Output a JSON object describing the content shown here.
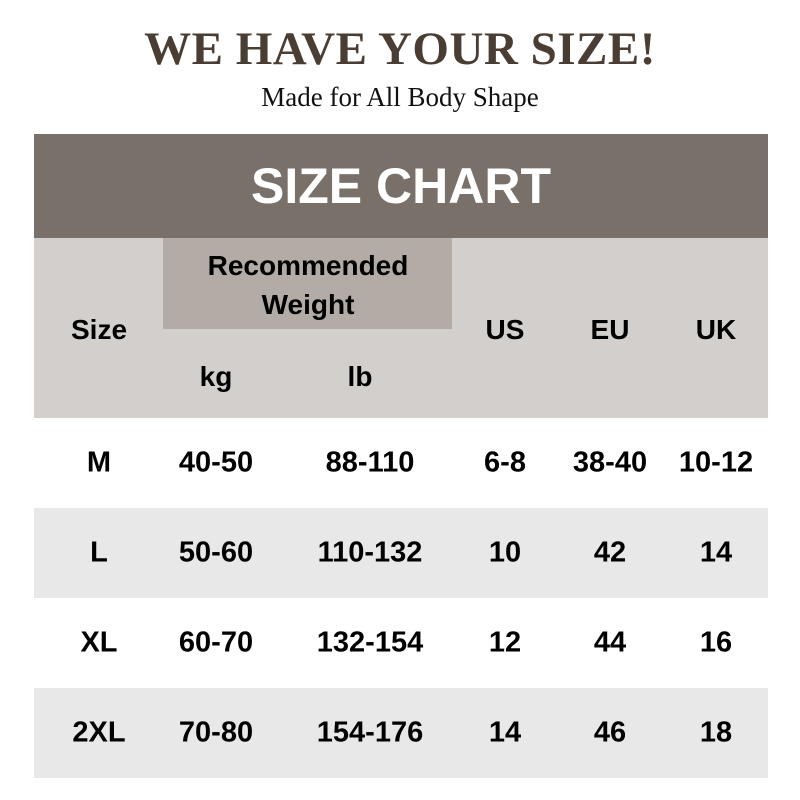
{
  "title": "WE HAVE YOUR SIZE!",
  "subtitle": "Made for All Body Shape",
  "banner": "SIZE CHART",
  "colors": {
    "banner": "#7a706a",
    "header": "#d3cfcc",
    "weight_box": "#b3aba6",
    "alt_row": "#e8e8e8",
    "title": "#4a3d33"
  },
  "headers": {
    "size": "Size",
    "weight_line1": "Recommended",
    "weight_line2": "Weight",
    "kg": "kg",
    "lb": "lb",
    "us": "US",
    "eu": "EU",
    "uk": "UK"
  },
  "rows": [
    [
      "M",
      "40-50",
      "88-110",
      "6-8",
      "38-40",
      "10-12"
    ],
    [
      "L",
      "50-60",
      "110-132",
      "10",
      "42",
      "14"
    ],
    [
      "XL",
      "60-70",
      "132-154",
      "12",
      "44",
      "16"
    ],
    [
      "2XL",
      "70-80",
      "154-176",
      "14",
      "46",
      "18"
    ]
  ]
}
